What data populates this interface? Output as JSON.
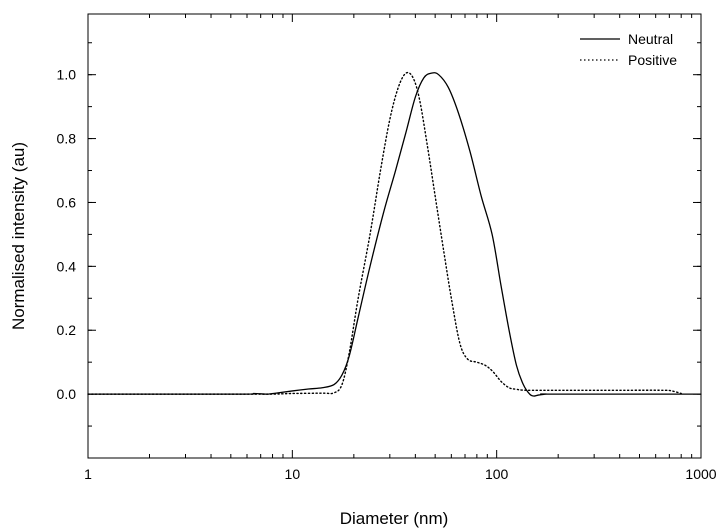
{
  "chart_data": {
    "type": "line",
    "xlabel": "Diameter (nm)",
    "ylabel": "Normalised intensity (au)",
    "xscale": "log",
    "xlim": [
      1,
      1000
    ],
    "ylim": [
      -0.2,
      1.19
    ],
    "x_ticks": [
      1,
      10,
      100,
      1000
    ],
    "x_tick_labels": [
      "1",
      "10",
      "100",
      "1000"
    ],
    "y_ticks": [
      0.0,
      0.2,
      0.4,
      0.6,
      0.8,
      1.0
    ],
    "y_tick_labels": [
      "0.0",
      "0.2",
      "0.4",
      "0.6",
      "0.8",
      "1.0"
    ],
    "grid": false,
    "legend_position": "top-right",
    "series": [
      {
        "name": "Neutral",
        "style": "solid",
        "color": "#000000",
        "points": [
          [
            1,
            0.0
          ],
          [
            5.5,
            0.0
          ],
          [
            6.5,
            0.002
          ],
          [
            7.5,
            0.0
          ],
          [
            8.5,
            0.004
          ],
          [
            10,
            0.01
          ],
          [
            12,
            0.016
          ],
          [
            14,
            0.02
          ],
          [
            16,
            0.03
          ],
          [
            17.5,
            0.06
          ],
          [
            19,
            0.12
          ],
          [
            21,
            0.24
          ],
          [
            24,
            0.4
          ],
          [
            28,
            0.57
          ],
          [
            32,
            0.7
          ],
          [
            36,
            0.82
          ],
          [
            40,
            0.93
          ],
          [
            44,
            0.99
          ],
          [
            48,
            1.005
          ],
          [
            52,
            1.0
          ],
          [
            58,
            0.96
          ],
          [
            65,
            0.88
          ],
          [
            74,
            0.76
          ],
          [
            84,
            0.62
          ],
          [
            95,
            0.5
          ],
          [
            105,
            0.34
          ],
          [
            115,
            0.2
          ],
          [
            125,
            0.09
          ],
          [
            135,
            0.03
          ],
          [
            145,
            0.0
          ],
          [
            152,
            -0.006
          ],
          [
            160,
            -0.003
          ],
          [
            175,
            0.0
          ],
          [
            190,
            0.0
          ],
          [
            1000,
            0.0
          ]
        ]
      },
      {
        "name": "Positive",
        "style": "dotted",
        "color": "#000000",
        "points": [
          [
            1,
            0.0
          ],
          [
            6,
            0.0
          ],
          [
            8,
            0.0
          ],
          [
            9,
            0.001
          ],
          [
            10,
            0.002
          ],
          [
            14,
            0.003
          ],
          [
            16,
            0.004
          ],
          [
            17.5,
            0.03
          ],
          [
            19,
            0.13
          ],
          [
            21,
            0.3
          ],
          [
            24,
            0.5
          ],
          [
            27,
            0.7
          ],
          [
            30,
            0.86
          ],
          [
            33,
            0.96
          ],
          [
            36,
            1.005
          ],
          [
            39,
            0.99
          ],
          [
            42,
            0.92
          ],
          [
            46,
            0.77
          ],
          [
            50,
            0.62
          ],
          [
            55,
            0.45
          ],
          [
            60,
            0.3
          ],
          [
            66,
            0.16
          ],
          [
            72,
            0.11
          ],
          [
            80,
            0.1
          ],
          [
            88,
            0.09
          ],
          [
            96,
            0.07
          ],
          [
            105,
            0.04
          ],
          [
            115,
            0.02
          ],
          [
            125,
            0.015
          ],
          [
            140,
            0.012
          ],
          [
            200,
            0.012
          ],
          [
            400,
            0.012
          ],
          [
            650,
            0.012
          ],
          [
            720,
            0.01
          ],
          [
            800,
            0.002
          ]
        ]
      }
    ]
  }
}
